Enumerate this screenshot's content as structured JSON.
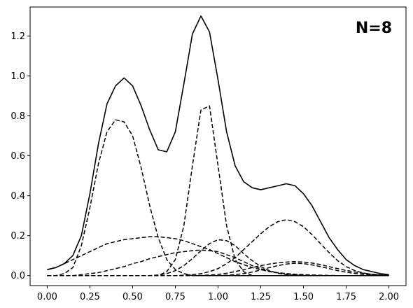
{
  "chart_data": {
    "type": "line",
    "title": "",
    "xlabel": "",
    "ylabel": "",
    "annotation": "N=8",
    "xlim": [
      -0.1,
      2.1
    ],
    "ylim": [
      -0.05,
      1.345
    ],
    "xticks": [
      "0.00",
      "0.25",
      "0.50",
      "0.75",
      "1.00",
      "1.25",
      "1.50",
      "1.75",
      "2.00"
    ],
    "yticks": [
      "0.0",
      "0.2",
      "0.4",
      "0.6",
      "0.8",
      "1.0",
      "1.2"
    ],
    "grid": false,
    "legend": "none",
    "line_color": "#000000",
    "x": [
      0.0,
      0.05,
      0.1,
      0.15,
      0.2,
      0.25,
      0.3,
      0.35,
      0.4,
      0.45,
      0.5,
      0.55,
      0.6,
      0.65,
      0.7,
      0.75,
      0.8,
      0.85,
      0.9,
      0.95,
      1.0,
      1.05,
      1.1,
      1.15,
      1.2,
      1.25,
      1.3,
      1.35,
      1.4,
      1.45,
      1.5,
      1.55,
      1.6,
      1.65,
      1.7,
      1.75,
      1.8,
      1.85,
      1.9,
      1.95,
      2.0
    ],
    "series": [
      {
        "style": "solid",
        "values": [
          0.03,
          0.04,
          0.06,
          0.1,
          0.2,
          0.41,
          0.66,
          0.86,
          0.95,
          0.99,
          0.95,
          0.85,
          0.73,
          0.63,
          0.62,
          0.72,
          0.96,
          1.21,
          1.3,
          1.22,
          0.98,
          0.72,
          0.55,
          0.47,
          0.44,
          0.43,
          0.44,
          0.45,
          0.46,
          0.45,
          0.41,
          0.35,
          0.27,
          0.19,
          0.13,
          0.08,
          0.05,
          0.03,
          0.02,
          0.01,
          0.005
        ]
      },
      {
        "style": "dashed",
        "values": [
          0.0,
          0.0,
          0.01,
          0.04,
          0.15,
          0.34,
          0.56,
          0.72,
          0.78,
          0.77,
          0.7,
          0.54,
          0.35,
          0.19,
          0.08,
          0.03,
          0.01,
          0.0,
          0.0,
          0.0,
          0.0,
          0.0,
          0.0,
          0.0,
          0.0,
          0.0,
          0.0,
          0.0,
          0.0,
          0.0,
          0.0,
          0.0,
          0.0,
          0.0,
          0.0,
          0.0,
          0.0,
          0.0,
          0.0,
          0.0,
          0.0
        ]
      },
      {
        "style": "dashed",
        "values": [
          0.0,
          0.0,
          0.0,
          0.0,
          0.0,
          0.0,
          0.0,
          0.0,
          0.0,
          0.0,
          0.0,
          0.0,
          0.0,
          0.0,
          0.02,
          0.08,
          0.25,
          0.55,
          0.83,
          0.85,
          0.55,
          0.25,
          0.08,
          0.02,
          0.0,
          0.0,
          0.0,
          0.0,
          0.0,
          0.0,
          0.0,
          0.0,
          0.0,
          0.0,
          0.0,
          0.0,
          0.0,
          0.0,
          0.0,
          0.0,
          0.0
        ]
      },
      {
        "style": "dashed",
        "values": [
          0.03,
          0.04,
          0.06,
          0.08,
          0.1,
          0.12,
          0.14,
          0.16,
          0.17,
          0.18,
          0.185,
          0.19,
          0.195,
          0.195,
          0.19,
          0.185,
          0.175,
          0.16,
          0.145,
          0.13,
          0.11,
          0.09,
          0.07,
          0.055,
          0.04,
          0.03,
          0.02,
          0.015,
          0.01,
          0.007,
          0.005,
          0.003,
          0.002,
          0.001,
          0.0,
          0.0,
          0.0,
          0.0,
          0.0,
          0.0,
          0.0
        ]
      },
      {
        "style": "dashed",
        "values": [
          0.0,
          0.0,
          0.0,
          0.0,
          0.005,
          0.01,
          0.015,
          0.025,
          0.035,
          0.045,
          0.06,
          0.07,
          0.085,
          0.095,
          0.105,
          0.115,
          0.12,
          0.125,
          0.128,
          0.125,
          0.12,
          0.105,
          0.09,
          0.07,
          0.05,
          0.035,
          0.022,
          0.013,
          0.008,
          0.004,
          0.002,
          0.001,
          0.0,
          0.0,
          0.0,
          0.0,
          0.0,
          0.0,
          0.0,
          0.0,
          0.0
        ]
      },
      {
        "style": "dashed",
        "values": [
          0.0,
          0.0,
          0.0,
          0.0,
          0.0,
          0.0,
          0.0,
          0.0,
          0.0,
          0.0,
          0.0,
          0.0,
          0.0,
          0.003,
          0.01,
          0.025,
          0.05,
          0.085,
          0.125,
          0.16,
          0.18,
          0.175,
          0.15,
          0.11,
          0.075,
          0.045,
          0.025,
          0.012,
          0.005,
          0.002,
          0.0,
          0.0,
          0.0,
          0.0,
          0.0,
          0.0,
          0.0,
          0.0,
          0.0,
          0.0,
          0.0
        ]
      },
      {
        "style": "dashed",
        "values": [
          0.0,
          0.0,
          0.0,
          0.0,
          0.0,
          0.0,
          0.0,
          0.0,
          0.0,
          0.0,
          0.0,
          0.0,
          0.0,
          0.0,
          0.0,
          0.0,
          0.002,
          0.005,
          0.01,
          0.02,
          0.035,
          0.06,
          0.09,
          0.13,
          0.17,
          0.21,
          0.245,
          0.27,
          0.28,
          0.27,
          0.245,
          0.205,
          0.16,
          0.115,
          0.075,
          0.045,
          0.025,
          0.013,
          0.006,
          0.003,
          0.001
        ]
      },
      {
        "style": "dashed",
        "values": [
          0.0,
          0.0,
          0.0,
          0.0,
          0.0,
          0.0,
          0.0,
          0.0,
          0.0,
          0.0,
          0.0,
          0.0,
          0.0,
          0.0,
          0.0,
          0.0,
          0.0,
          0.0,
          0.001,
          0.003,
          0.006,
          0.012,
          0.02,
          0.03,
          0.04,
          0.05,
          0.058,
          0.064,
          0.068,
          0.07,
          0.068,
          0.063,
          0.055,
          0.045,
          0.035,
          0.026,
          0.018,
          0.012,
          0.007,
          0.004,
          0.002
        ]
      },
      {
        "style": "dashed",
        "values": [
          0.0,
          0.0,
          0.0,
          0.0,
          0.0,
          0.0,
          0.0,
          0.0,
          0.0,
          0.0,
          0.0,
          0.0,
          0.0,
          0.0,
          0.0,
          0.0,
          0.0,
          0.0,
          0.0,
          0.0,
          0.0,
          0.002,
          0.005,
          0.01,
          0.018,
          0.028,
          0.04,
          0.05,
          0.058,
          0.062,
          0.06,
          0.054,
          0.045,
          0.035,
          0.025,
          0.017,
          0.011,
          0.006,
          0.003,
          0.001,
          0.0
        ]
      },
      {
        "style": "dashed",
        "values": [
          0.0,
          0.0,
          0.0,
          0.0,
          0.0,
          0.0,
          0.0,
          0.0,
          0.0,
          0.0,
          0.0,
          0.0,
          0.0,
          0.0,
          0.0,
          0.0,
          0.0,
          0.0,
          0.0,
          0.0,
          0.0,
          0.0,
          0.0,
          0.0,
          0.0,
          0.0,
          0.0,
          0.0,
          0.0,
          0.0,
          0.0,
          0.0,
          0.0,
          0.0,
          0.0,
          0.0,
          0.0,
          0.0,
          0.0,
          0.0,
          0.0
        ]
      }
    ]
  }
}
